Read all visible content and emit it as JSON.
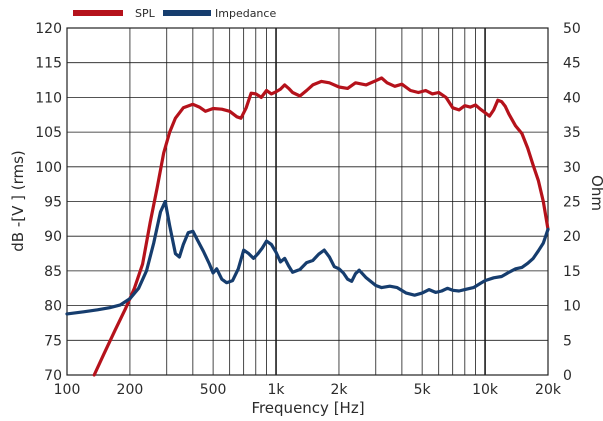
{
  "chart_data": {
    "type": "line",
    "xlabel": "Frequency [Hz]",
    "ylabel_left": "dB -[V ] (rms)",
    "ylabel_right": "Ohm",
    "x_scale": "log",
    "xlim": [
      100,
      20000
    ],
    "ylim_left": [
      70,
      120
    ],
    "ylim_right": [
      0,
      50
    ],
    "grid": true,
    "legend_position": "top-left",
    "x_ticks": [
      {
        "value": 100,
        "label": "100"
      },
      {
        "value": 200,
        "label": "200"
      },
      {
        "value": 500,
        "label": "500"
      },
      {
        "value": 1000,
        "label": "1k"
      },
      {
        "value": 2000,
        "label": "2k"
      },
      {
        "value": 5000,
        "label": "5k"
      },
      {
        "value": 10000,
        "label": "10k"
      },
      {
        "value": 20000,
        "label": "20k"
      }
    ],
    "y_ticks_left": [
      "70",
      "75",
      "80",
      "85",
      "90",
      "95",
      "100",
      "105",
      "110",
      "115",
      "120"
    ],
    "y_ticks_right": [
      "0",
      "5",
      "10",
      "15",
      "20",
      "25",
      "30",
      "35",
      "40",
      "45",
      "50"
    ],
    "series": [
      {
        "name": "SPL",
        "color": "#b5121b",
        "axis": "left",
        "points": [
          [
            135,
            70
          ],
          [
            150,
            73
          ],
          [
            170,
            76.5
          ],
          [
            190,
            79.5
          ],
          [
            210,
            82.5
          ],
          [
            230,
            86
          ],
          [
            250,
            92
          ],
          [
            270,
            97
          ],
          [
            290,
            102
          ],
          [
            310,
            105
          ],
          [
            330,
            107
          ],
          [
            360,
            108.5
          ],
          [
            400,
            109
          ],
          [
            430,
            108.6
          ],
          [
            460,
            108
          ],
          [
            500,
            108.4
          ],
          [
            550,
            108.3
          ],
          [
            600,
            108
          ],
          [
            650,
            107.2
          ],
          [
            680,
            107
          ],
          [
            720,
            108.5
          ],
          [
            760,
            110.6
          ],
          [
            800,
            110.5
          ],
          [
            850,
            110
          ],
          [
            900,
            111
          ],
          [
            950,
            110.5
          ],
          [
            1000,
            110.8
          ],
          [
            1050,
            111.2
          ],
          [
            1100,
            111.8
          ],
          [
            1150,
            111.3
          ],
          [
            1200,
            110.7
          ],
          [
            1300,
            110.2
          ],
          [
            1400,
            111
          ],
          [
            1500,
            111.8
          ],
          [
            1650,
            112.3
          ],
          [
            1800,
            112.1
          ],
          [
            2000,
            111.5
          ],
          [
            2200,
            111.3
          ],
          [
            2400,
            112.1
          ],
          [
            2700,
            111.8
          ],
          [
            3000,
            112.4
          ],
          [
            3200,
            112.8
          ],
          [
            3400,
            112.1
          ],
          [
            3700,
            111.6
          ],
          [
            4000,
            111.9
          ],
          [
            4400,
            111
          ],
          [
            4800,
            110.7
          ],
          [
            5200,
            111
          ],
          [
            5600,
            110.5
          ],
          [
            6000,
            110.7
          ],
          [
            6500,
            110
          ],
          [
            7000,
            108.5
          ],
          [
            7500,
            108.2
          ],
          [
            8000,
            108.8
          ],
          [
            8500,
            108.6
          ],
          [
            9000,
            108.9
          ],
          [
            9500,
            108.3
          ],
          [
            10000,
            107.8
          ],
          [
            10500,
            107.3
          ],
          [
            11000,
            108.2
          ],
          [
            11500,
            109.6
          ],
          [
            12000,
            109.4
          ],
          [
            12500,
            108.7
          ],
          [
            13000,
            107.6
          ],
          [
            14000,
            105.9
          ],
          [
            15000,
            104.8
          ],
          [
            16000,
            102.7
          ],
          [
            17000,
            100.2
          ],
          [
            18000,
            98
          ],
          [
            19000,
            95
          ],
          [
            20000,
            91
          ]
        ]
      },
      {
        "name": "Impedance",
        "color": "#163d6e",
        "axis": "right",
        "points": [
          [
            100,
            8.8
          ],
          [
            120,
            9.1
          ],
          [
            140,
            9.4
          ],
          [
            160,
            9.7
          ],
          [
            180,
            10.1
          ],
          [
            200,
            11
          ],
          [
            220,
            12.5
          ],
          [
            240,
            15
          ],
          [
            260,
            19
          ],
          [
            280,
            23.5
          ],
          [
            295,
            25
          ],
          [
            310,
            21.5
          ],
          [
            330,
            17.5
          ],
          [
            345,
            17
          ],
          [
            360,
            18.8
          ],
          [
            380,
            20.5
          ],
          [
            400,
            20.7
          ],
          [
            420,
            19.5
          ],
          [
            450,
            17.8
          ],
          [
            480,
            16
          ],
          [
            500,
            14.7
          ],
          [
            520,
            15.3
          ],
          [
            550,
            13.8
          ],
          [
            580,
            13.3
          ],
          [
            620,
            13.6
          ],
          [
            660,
            15.3
          ],
          [
            700,
            18
          ],
          [
            740,
            17.5
          ],
          [
            780,
            16.8
          ],
          [
            820,
            17.5
          ],
          [
            860,
            18.3
          ],
          [
            900,
            19.3
          ],
          [
            950,
            18.8
          ],
          [
            1000,
            17.7
          ],
          [
            1050,
            16.3
          ],
          [
            1100,
            16.8
          ],
          [
            1150,
            15.7
          ],
          [
            1200,
            14.8
          ],
          [
            1300,
            15.2
          ],
          [
            1400,
            16.2
          ],
          [
            1500,
            16.5
          ],
          [
            1600,
            17.4
          ],
          [
            1700,
            18
          ],
          [
            1800,
            17
          ],
          [
            1900,
            15.6
          ],
          [
            2000,
            15.3
          ],
          [
            2100,
            14.7
          ],
          [
            2200,
            13.8
          ],
          [
            2300,
            13.5
          ],
          [
            2400,
            14.6
          ],
          [
            2500,
            15.1
          ],
          [
            2700,
            14
          ],
          [
            3000,
            12.9
          ],
          [
            3200,
            12.6
          ],
          [
            3500,
            12.8
          ],
          [
            3800,
            12.6
          ],
          [
            4200,
            11.8
          ],
          [
            4600,
            11.5
          ],
          [
            5000,
            11.8
          ],
          [
            5400,
            12.3
          ],
          [
            5800,
            11.9
          ],
          [
            6200,
            12.1
          ],
          [
            6600,
            12.5
          ],
          [
            7000,
            12.2
          ],
          [
            7500,
            12.1
          ],
          [
            8000,
            12.3
          ],
          [
            8800,
            12.6
          ],
          [
            9500,
            13.2
          ],
          [
            10000,
            13.6
          ],
          [
            11000,
            14
          ],
          [
            12000,
            14.2
          ],
          [
            13000,
            14.8
          ],
          [
            14000,
            15.3
          ],
          [
            15000,
            15.5
          ],
          [
            16000,
            16.1
          ],
          [
            17000,
            16.8
          ],
          [
            18000,
            17.9
          ],
          [
            19000,
            19
          ],
          [
            20000,
            21
          ]
        ]
      }
    ]
  }
}
